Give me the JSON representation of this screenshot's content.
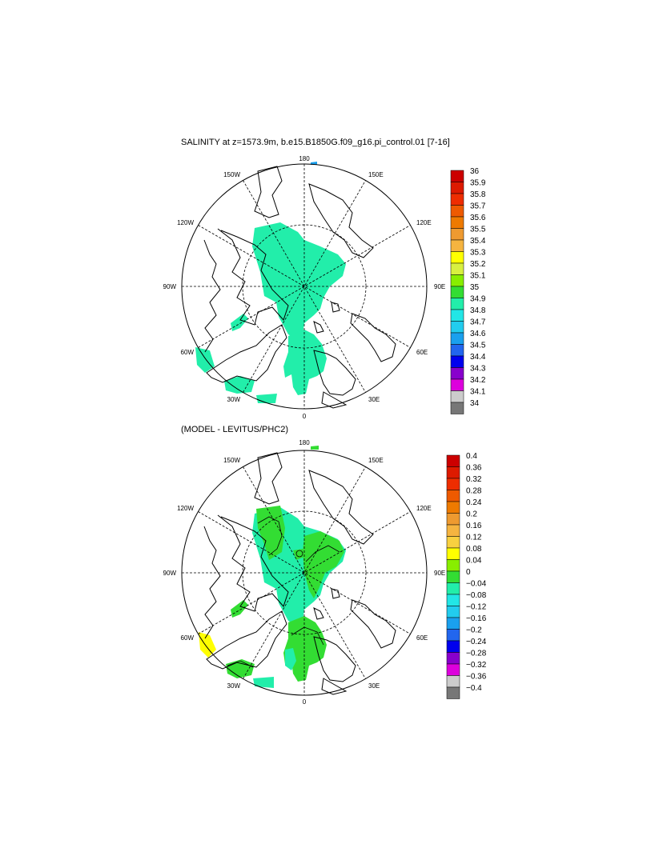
{
  "panels": [
    {
      "title": "SALINITY at z=1573.9m, b.e15.B1850G.f09_g16.pi_control.01 [7-16]",
      "lon_labels": [
        "180",
        "150E",
        "120E",
        "90E",
        "60E",
        "30E",
        "0",
        "30W",
        "60W",
        "90W",
        "120W",
        "150W"
      ],
      "colorbar": {
        "labels": [
          "36",
          "35.9",
          "35.8",
          "35.7",
          "35.6",
          "35.5",
          "35.4",
          "35.3",
          "35.2",
          "35.1",
          "35",
          "34.9",
          "34.8",
          "34.7",
          "34.6",
          "34.5",
          "34.4",
          "34.3",
          "34.2",
          "34.1",
          "34"
        ],
        "colors": [
          "#cc0000",
          "#dd1a00",
          "#ee2d00",
          "#ee5a00",
          "#ee7a00",
          "#ee9a30",
          "#f5b440",
          "#ffff00",
          "#d8f040",
          "#88ee00",
          "#33dd33",
          "#22eeaa",
          "#22e6e6",
          "#22ccee",
          "#1aa0ee",
          "#2266ee",
          "#0000ee",
          "#8800cc",
          "#dd00dd",
          "#cccccc",
          "#777777"
        ]
      }
    },
    {
      "title": "(MODEL - LEVITUS/PHC2)",
      "lon_labels": [
        "180",
        "150E",
        "120E",
        "90E",
        "60E",
        "30E",
        "0",
        "30W",
        "60W",
        "90W",
        "120W",
        "150W"
      ],
      "colorbar": {
        "labels": [
          "0.4",
          "0.36",
          "0.32",
          "0.28",
          "0.24",
          "0.2",
          "0.16",
          "0.12",
          "0.08",
          "0.04",
          "0",
          "−0.04",
          "−0.08",
          "−0.12",
          "−0.16",
          "−0.2",
          "−0.24",
          "−0.28",
          "−0.32",
          "−0.36",
          "−0.4"
        ],
        "colors": [
          "#cc0000",
          "#dd1a00",
          "#ee2d00",
          "#ee5a00",
          "#ee7a00",
          "#ee9a30",
          "#f5b440",
          "#f8d040",
          "#ffff00",
          "#88ee00",
          "#33dd33",
          "#22eeaa",
          "#22e6e6",
          "#22ccee",
          "#1aa0ee",
          "#2266ee",
          "#0000ee",
          "#8800cc",
          "#dd00dd",
          "#cccccc",
          "#777777"
        ]
      }
    }
  ]
}
